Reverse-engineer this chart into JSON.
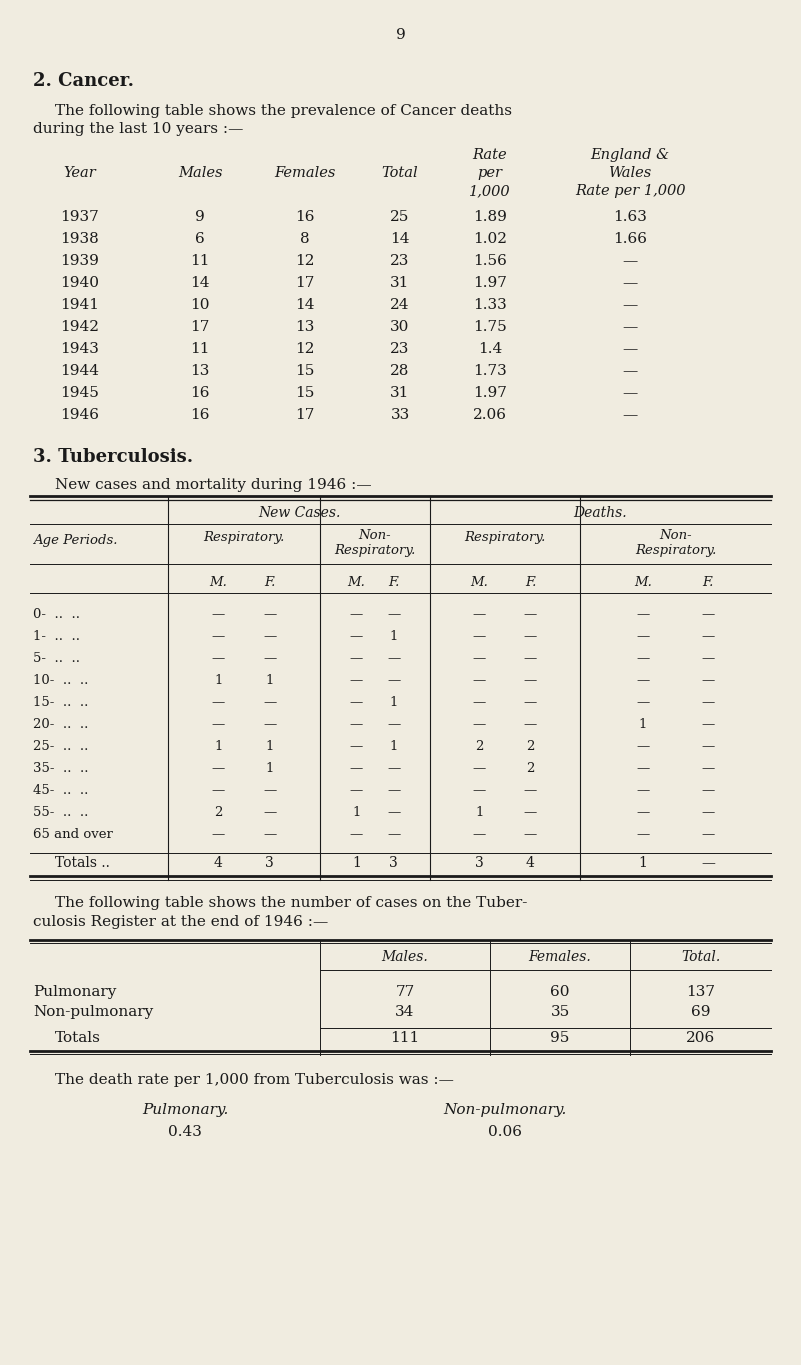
{
  "page_number": "9",
  "bg_color": "#f0ece0",
  "text_color": "#1a1a1a",
  "cancer_rows": [
    [
      "1937",
      "9",
      "16",
      "25",
      "1.89",
      "1.63"
    ],
    [
      "1938",
      "6",
      "8",
      "14",
      "1.02",
      "1.66"
    ],
    [
      "1939",
      "11",
      "12",
      "23",
      "1.56",
      "—"
    ],
    [
      "1940",
      "14",
      "17",
      "31",
      "1.97",
      "—"
    ],
    [
      "1941",
      "10",
      "14",
      "24",
      "1.33",
      "—"
    ],
    [
      "1942",
      "17",
      "13",
      "30",
      "1.75",
      "—"
    ],
    [
      "1943",
      "11",
      "12",
      "23",
      "1.4",
      "—"
    ],
    [
      "1944",
      "13",
      "15",
      "28",
      "1.73",
      "—"
    ],
    [
      "1945",
      "16",
      "15",
      "31",
      "1.97",
      "—"
    ],
    [
      "1946",
      "16",
      "17",
      "33",
      "2.06",
      "—"
    ]
  ],
  "tb_age_periods": [
    "0-  ..  ..",
    "1-  ..  ..",
    "5-  ..  ..",
    "10-  ..  ..",
    "15-  ..  ..",
    "20-  ..  ..",
    "25-  ..  ..",
    "35-  ..  ..",
    "45-  ..  ..",
    "55-  ..  ..",
    "65 and over"
  ],
  "tb_data": {
    "new_resp_M": [
      "—",
      "—",
      "—",
      "1",
      "—",
      "—",
      "1",
      "—",
      "—",
      "2",
      "—"
    ],
    "new_resp_F": [
      "—",
      "—",
      "—",
      "1",
      "—",
      "—",
      "1",
      "1",
      "—",
      "—",
      "—"
    ],
    "new_nresp_M": [
      "—",
      "—",
      "—",
      "—",
      "—",
      "—",
      "—",
      "—",
      "—",
      "1",
      "—"
    ],
    "new_nresp_F": [
      "—",
      "1",
      "—",
      "—",
      "1",
      "—",
      "1",
      "—",
      "—",
      "—",
      "—"
    ],
    "dth_resp_M": [
      "—",
      "—",
      "—",
      "—",
      "—",
      "—",
      "2",
      "—",
      "—",
      "1",
      "—"
    ],
    "dth_resp_F": [
      "—",
      "—",
      "—",
      "—",
      "—",
      "—",
      "2",
      "2",
      "—",
      "—",
      "—"
    ],
    "dth_nresp_M": [
      "—",
      "—",
      "—",
      "—",
      "—",
      "1",
      "—",
      "—",
      "—",
      "—",
      "—"
    ],
    "dth_nresp_F": [
      "—",
      "—",
      "—",
      "—",
      "—",
      "—",
      "—",
      "—",
      "—",
      "—",
      "—"
    ]
  },
  "tb_totals": [
    "4",
    "3",
    "1",
    "3",
    "3",
    "4",
    "1",
    "—"
  ],
  "reg_rows": [
    [
      "Pulmonary",
      "77",
      "60",
      "137"
    ],
    [
      "Non-pulmonary",
      "34",
      "35",
      "69"
    ]
  ],
  "reg_totals": [
    "111",
    "95",
    "206"
  ],
  "pulmonary_label": "Pulmonary.",
  "pulmonary_value": "0.43",
  "nonpulmonary_label": "Non-pulmonary.",
  "nonpulmonary_value": "0.06"
}
